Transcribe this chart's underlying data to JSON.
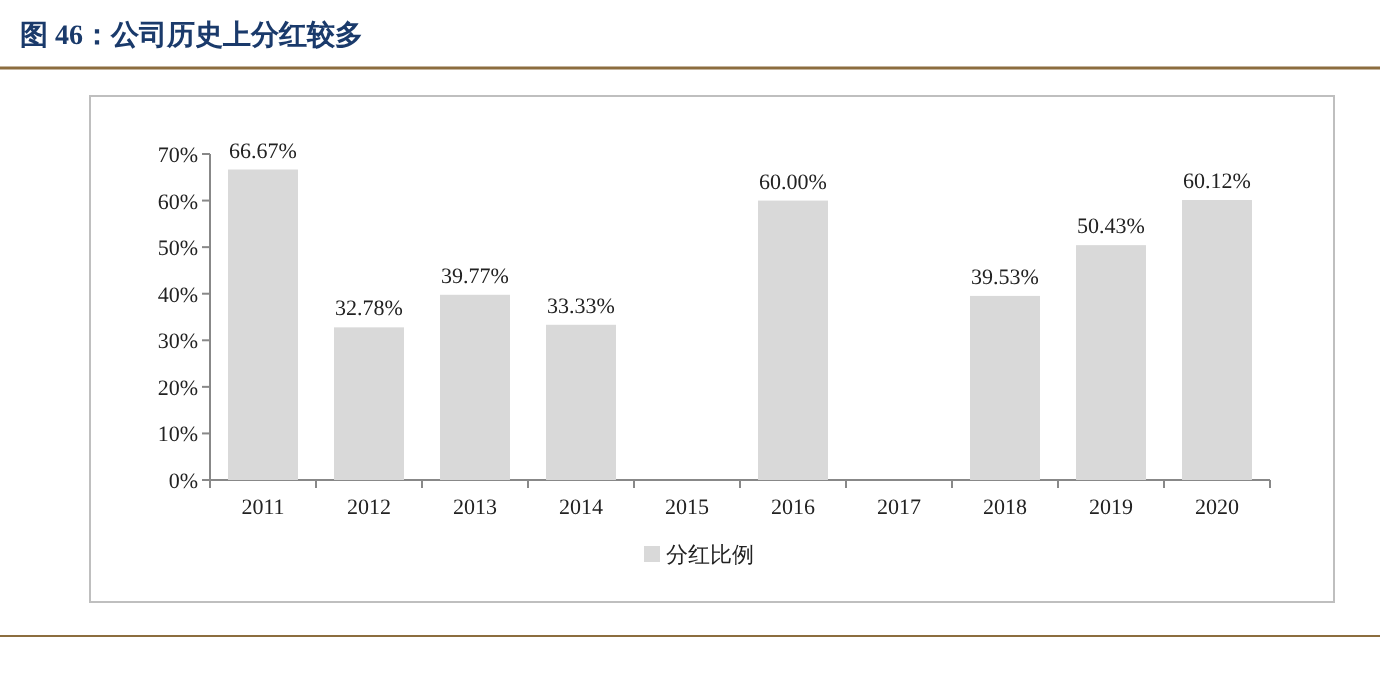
{
  "chart_data": {
    "type": "bar",
    "title": "图 46：公司历史上分红较多",
    "categories": [
      "2011",
      "2012",
      "2013",
      "2014",
      "2015",
      "2016",
      "2017",
      "2018",
      "2019",
      "2020"
    ],
    "series": [
      {
        "name": "分红比例",
        "color": "#d9d9d9",
        "values": [
          66.67,
          32.78,
          39.77,
          33.33,
          null,
          60.0,
          null,
          39.53,
          50.43,
          60.12
        ],
        "value_labels": [
          "66.67%",
          "32.78%",
          "39.77%",
          "33.33%",
          null,
          "60.00%",
          null,
          "39.53%",
          "50.43%",
          "60.12%"
        ]
      }
    ],
    "ylim": [
      0,
      70
    ],
    "yticks": [
      {
        "value": 0,
        "label": "0%"
      },
      {
        "value": 10,
        "label": "10%"
      },
      {
        "value": 20,
        "label": "20%"
      },
      {
        "value": 30,
        "label": "30%"
      },
      {
        "value": 40,
        "label": "40%"
      },
      {
        "value": 50,
        "label": "50%"
      },
      {
        "value": 60,
        "label": "60%"
      },
      {
        "value": 70,
        "label": "70%"
      }
    ],
    "legend": "bottom",
    "grid": false
  }
}
